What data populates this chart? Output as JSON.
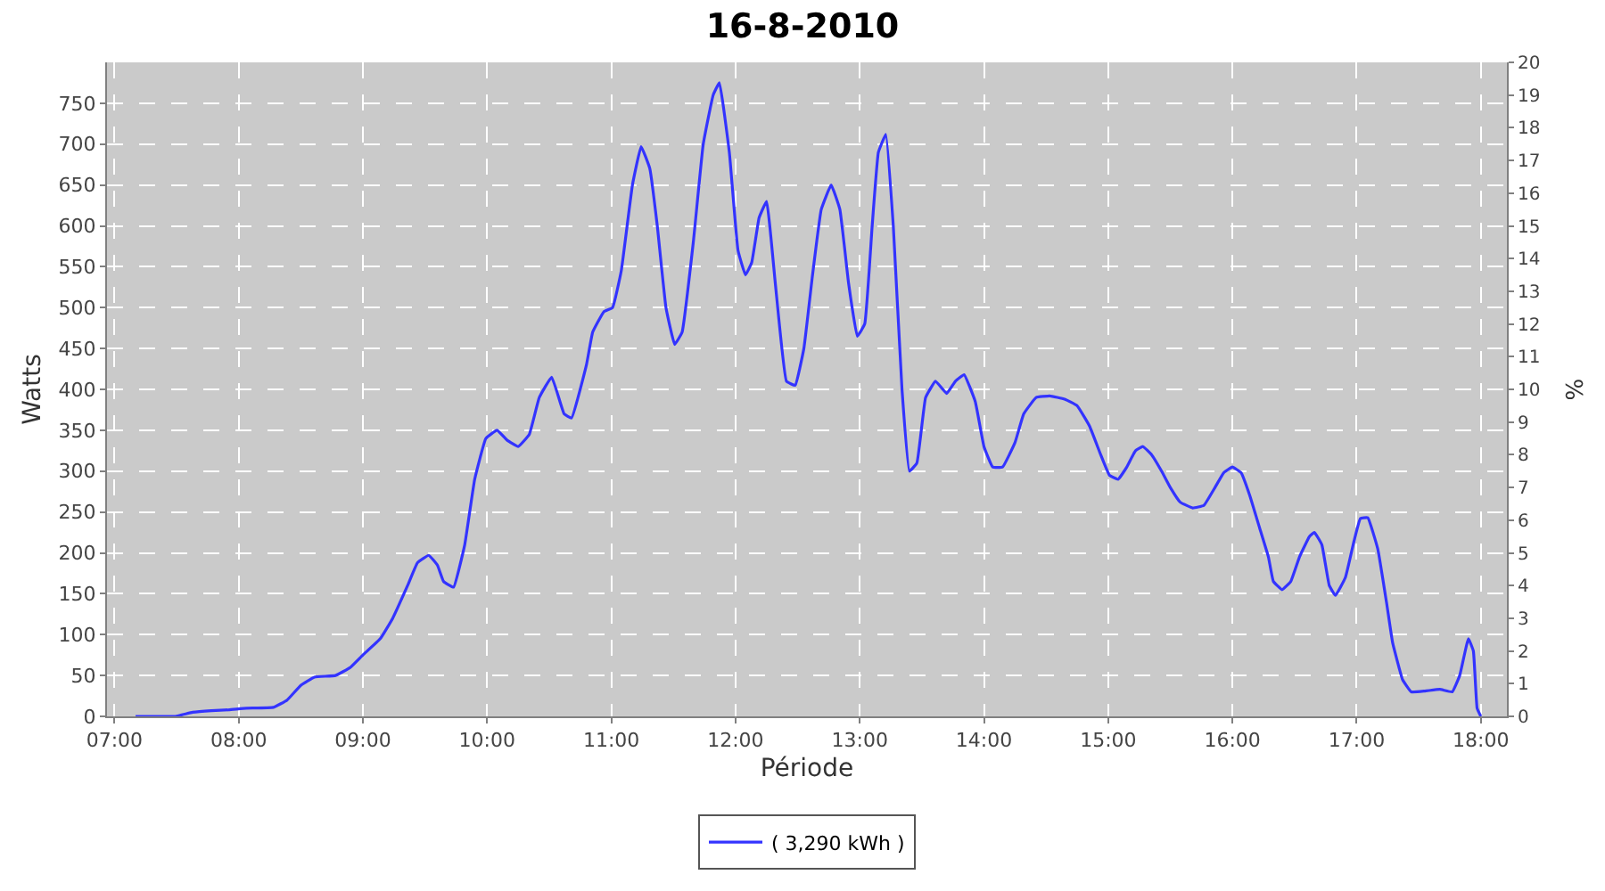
{
  "chart_data": {
    "type": "line",
    "title": "16-8-2010",
    "xlabel": "Période",
    "ylabel": "Watts",
    "y2label": "%",
    "x": [
      7.17,
      7.49,
      7.63,
      7.78,
      7.92,
      8.06,
      8.28,
      8.39,
      8.5,
      8.61,
      8.78,
      8.9,
      9.0,
      9.14,
      9.24,
      9.36,
      9.44,
      9.53,
      9.6,
      9.65,
      9.73,
      9.82,
      9.9,
      9.99,
      10.08,
      10.16,
      10.25,
      10.34,
      10.42,
      10.52,
      10.62,
      10.68,
      10.8,
      10.85,
      10.94,
      11.01,
      11.08,
      11.17,
      11.24,
      11.31,
      11.37,
      11.44,
      11.51,
      11.57,
      11.66,
      11.74,
      11.82,
      11.87,
      11.95,
      12.02,
      12.08,
      12.13,
      12.19,
      12.25,
      12.32,
      12.41,
      12.48,
      12.55,
      12.62,
      12.69,
      12.77,
      12.84,
      12.91,
      12.98,
      13.04,
      13.1,
      13.15,
      13.21,
      13.27,
      13.34,
      13.4,
      13.46,
      13.53,
      13.61,
      13.7,
      13.77,
      13.84,
      13.93,
      14.0,
      14.07,
      14.15,
      14.25,
      14.32,
      14.42,
      14.53,
      14.65,
      14.75,
      14.85,
      14.94,
      15.01,
      15.08,
      15.15,
      15.22,
      15.28,
      15.35,
      15.43,
      15.5,
      15.58,
      15.68,
      15.77,
      15.86,
      15.93,
      16.0,
      16.07,
      16.14,
      16.22,
      16.29,
      16.33,
      16.4,
      16.47,
      16.54,
      16.62,
      16.66,
      16.72,
      16.78,
      16.83,
      16.91,
      16.98,
      17.03,
      17.09,
      17.17,
      17.24,
      17.29,
      17.37,
      17.44,
      17.55,
      17.67,
      17.77,
      17.83,
      17.9,
      17.94,
      17.97,
      18.0
    ],
    "series": [
      {
        "name": "( 3,290 kWh )",
        "color": "#3333ff",
        "values": [
          0,
          0,
          5,
          7,
          8,
          10,
          11,
          20,
          38,
          48,
          50,
          60,
          75,
          95,
          120,
          160,
          188,
          197,
          185,
          165,
          158,
          210,
          290,
          340,
          350,
          338,
          330,
          345,
          390,
          415,
          370,
          365,
          430,
          470,
          495,
          500,
          545,
          650,
          697,
          670,
          600,
          500,
          455,
          470,
          580,
          700,
          760,
          775,
          690,
          570,
          540,
          555,
          610,
          630,
          530,
          410,
          405,
          450,
          540,
          620,
          650,
          620,
          530,
          465,
          480,
          600,
          690,
          712,
          600,
          400,
          300,
          310,
          390,
          410,
          395,
          410,
          418,
          385,
          330,
          305,
          305,
          335,
          370,
          390,
          392,
          388,
          380,
          355,
          320,
          295,
          290,
          305,
          325,
          330,
          320,
          300,
          280,
          262,
          255,
          258,
          280,
          298,
          305,
          298,
          270,
          230,
          195,
          165,
          155,
          165,
          195,
          220,
          225,
          210,
          160,
          148,
          170,
          215,
          242,
          243,
          205,
          140,
          90,
          45,
          30,
          31,
          33,
          30,
          50,
          95,
          80,
          10,
          0
        ]
      }
    ],
    "xlim": [
      6.94,
      18.21
    ],
    "xticks": [
      {
        "value": 7,
        "label": "07:00"
      },
      {
        "value": 8,
        "label": "08:00"
      },
      {
        "value": 9,
        "label": "09:00"
      },
      {
        "value": 10,
        "label": "10:00"
      },
      {
        "value": 11,
        "label": "11:00"
      },
      {
        "value": 12,
        "label": "12:00"
      },
      {
        "value": 13,
        "label": "13:00"
      },
      {
        "value": 14,
        "label": "14:00"
      },
      {
        "value": 15,
        "label": "15:00"
      },
      {
        "value": 16,
        "label": "16:00"
      },
      {
        "value": 17,
        "label": "17:00"
      },
      {
        "value": 18,
        "label": "18:00"
      }
    ],
    "ylim": [
      0,
      800
    ],
    "yticks": [
      0,
      50,
      100,
      150,
      200,
      250,
      300,
      350,
      400,
      450,
      500,
      550,
      600,
      650,
      700,
      750
    ],
    "y2lim": [
      0,
      20
    ],
    "y2ticks": [
      0,
      1,
      2,
      3,
      4,
      5,
      6,
      7,
      8,
      9,
      10,
      11,
      12,
      13,
      14,
      15,
      16,
      17,
      18,
      19,
      20
    ],
    "grid": true,
    "legend": "bottom",
    "marker": "none",
    "line_style": "solid"
  }
}
